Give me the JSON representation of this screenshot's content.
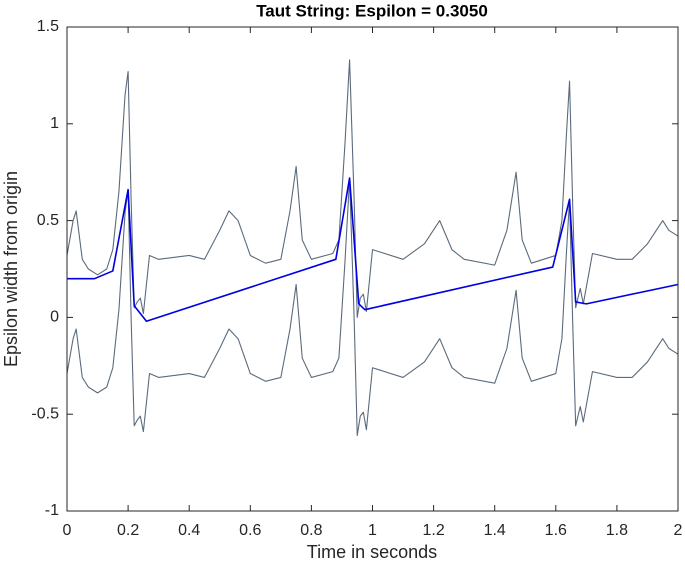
{
  "chart_data": {
    "type": "line",
    "title": "Taut String: Espilon = 0.3050",
    "xlabel": "Time in seconds",
    "ylabel": "Epsilon width from origin",
    "xlim": [
      0,
      2
    ],
    "ylim": [
      -1,
      1.5
    ],
    "xticks": [
      0,
      0.2,
      0.4,
      0.6,
      0.8,
      1,
      1.2,
      1.4,
      1.6,
      1.8,
      2
    ],
    "yticks": [
      -1,
      -0.5,
      0,
      0.5,
      1,
      1.5
    ],
    "grid": false,
    "x": [
      0,
      0.02,
      0.03,
      0.05,
      0.07,
      0.1,
      0.13,
      0.15,
      0.17,
      0.19,
      0.2,
      0.21,
      0.22,
      0.23,
      0.24,
      0.25,
      0.27,
      0.3,
      0.4,
      0.45,
      0.5,
      0.53,
      0.56,
      0.6,
      0.65,
      0.7,
      0.73,
      0.75,
      0.77,
      0.8,
      0.87,
      0.89,
      0.91,
      0.925,
      0.94,
      0.95,
      0.96,
      0.97,
      0.98,
      1.0,
      1.1,
      1.17,
      1.22,
      1.26,
      1.3,
      1.4,
      1.44,
      1.47,
      1.49,
      1.52,
      1.6,
      1.62,
      1.635,
      1.645,
      1.655,
      1.665,
      1.68,
      1.69,
      1.72,
      1.8,
      1.85,
      1.9,
      1.95,
      1.97,
      2.0
    ],
    "series": [
      {
        "color": "#5b6b7c",
        "values": [
          0.32,
          0.5,
          0.55,
          0.3,
          0.25,
          0.22,
          0.25,
          0.35,
          0.65,
          1.15,
          1.27,
          0.6,
          0.05,
          0.08,
          0.1,
          0.02,
          0.32,
          0.3,
          0.32,
          0.3,
          0.45,
          0.55,
          0.5,
          0.32,
          0.28,
          0.3,
          0.55,
          0.78,
          0.4,
          0.3,
          0.33,
          0.4,
          0.9,
          1.33,
          0.6,
          0.0,
          0.1,
          0.12,
          0.03,
          0.35,
          0.3,
          0.38,
          0.5,
          0.35,
          0.3,
          0.27,
          0.45,
          0.75,
          0.4,
          0.28,
          0.32,
          0.5,
          0.95,
          1.22,
          0.6,
          0.05,
          0.15,
          0.07,
          0.33,
          0.3,
          0.3,
          0.38,
          0.5,
          0.45,
          0.42
        ]
      },
      {
        "color": "#5b6b7c",
        "values": [
          -0.29,
          -0.11,
          -0.06,
          -0.31,
          -0.36,
          -0.39,
          -0.36,
          -0.26,
          0.04,
          0.54,
          0.66,
          -0.01,
          -0.56,
          -0.53,
          -0.51,
          -0.59,
          -0.29,
          -0.31,
          -0.29,
          -0.31,
          -0.16,
          -0.06,
          -0.11,
          -0.29,
          -0.33,
          -0.31,
          -0.06,
          0.17,
          -0.21,
          -0.31,
          -0.28,
          -0.21,
          0.29,
          0.72,
          -0.01,
          -0.61,
          -0.51,
          -0.49,
          -0.58,
          -0.26,
          -0.31,
          -0.23,
          -0.11,
          -0.26,
          -0.31,
          -0.34,
          -0.16,
          0.14,
          -0.21,
          -0.33,
          -0.29,
          -0.11,
          0.34,
          0.61,
          -0.01,
          -0.56,
          -0.46,
          -0.54,
          -0.28,
          -0.31,
          -0.31,
          -0.23,
          -0.11,
          -0.16,
          -0.19
        ]
      },
      {
        "color": "#0000e0",
        "x": [
          0,
          0.09,
          0.15,
          0.2,
          0.22,
          0.26,
          0.88,
          0.925,
          0.955,
          0.975,
          1.59,
          1.645,
          1.665,
          1.7,
          2.0
        ],
        "values": [
          0.2,
          0.2,
          0.24,
          0.66,
          0.06,
          -0.02,
          0.3,
          0.72,
          0.07,
          0.04,
          0.26,
          0.61,
          0.08,
          0.07,
          0.17
        ]
      }
    ]
  }
}
